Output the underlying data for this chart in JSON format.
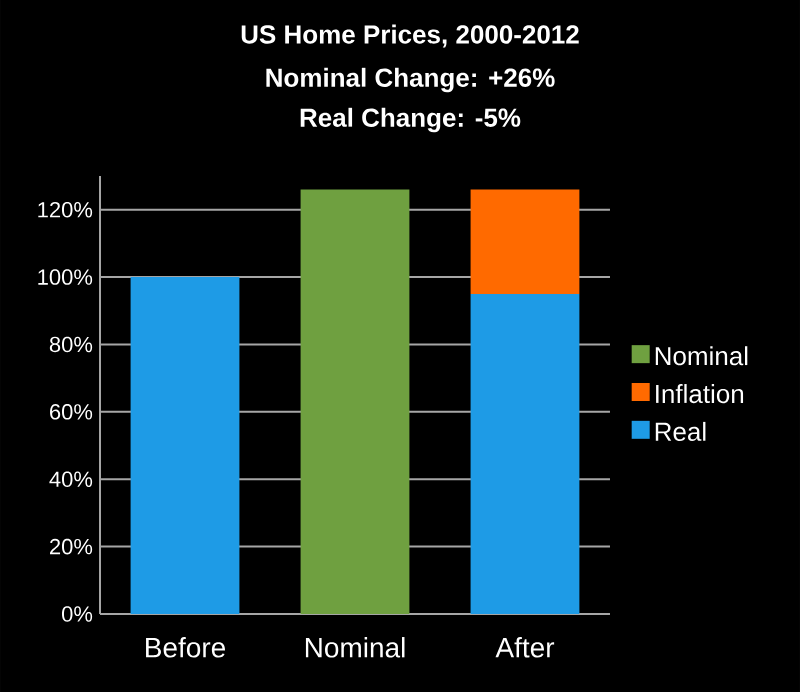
{
  "chart_data": {
    "type": "bar",
    "title": "US Home Prices, 2000-2012",
    "subtitle": "Nominal Change:  +26%",
    "annotations": [
      "Real Change:  -5%"
    ],
    "categories": [
      "Before",
      "Nominal",
      "After"
    ],
    "stacked": true,
    "series": [
      {
        "name": "Real",
        "color": "#1e9be6",
        "values": [
          100,
          null,
          95
        ]
      },
      {
        "name": "Inflation",
        "color": "#ff6a00",
        "values": [
          null,
          null,
          31
        ]
      },
      {
        "name": "Nominal",
        "color": "#6fa040",
        "values": [
          null,
          126,
          null
        ]
      }
    ],
    "ylim": [
      0,
      130
    ],
    "yticks": [
      {
        "value": 0,
        "label": "0%"
      },
      {
        "value": 20,
        "label": "20%"
      },
      {
        "value": 40,
        "label": "40%"
      },
      {
        "value": 60,
        "label": "60%"
      },
      {
        "value": 80,
        "label": "80%"
      },
      {
        "value": 100,
        "label": "100%"
      },
      {
        "value": 120,
        "label": "120%"
      }
    ],
    "grid": "y",
    "legend": "right"
  }
}
